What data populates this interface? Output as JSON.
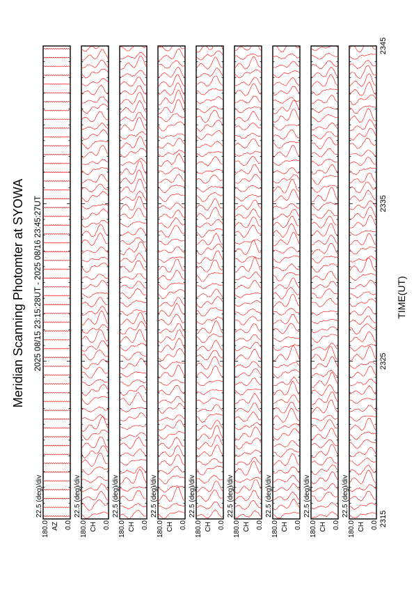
{
  "title": "Meridian Scanning Photomter at SYOWA",
  "time_range": "2025 08/15 23:15:28UT - 2025 08/16 23:45:27UT",
  "x_axis_label": "TIME(UT)",
  "colors": {
    "trace": "#ff0000",
    "frame": "#000000",
    "background": "#ffffff"
  },
  "chart_data": {
    "type": "line",
    "title": "Meridian Scanning Photomter at SYOWA",
    "xlabel": "TIME(UT)",
    "x_ticks": [
      "2315",
      "2325",
      "2335",
      "2345"
    ],
    "xlim": [
      2315,
      2345
    ],
    "panels": [
      {
        "scale_label": "22.5 (deg)/div",
        "y_top_label": "180.0",
        "y_bottom_label": "0.0",
        "channel_label": "AZ"
      },
      {
        "scale_label": "22.5 (deg)/div",
        "y_top_label": "180.0",
        "y_bottom_label": "0.0",
        "channel_label": "CH"
      },
      {
        "scale_label": "22.5 (deg)/div",
        "y_top_label": "180.0",
        "y_bottom_label": "0.0",
        "channel_label": "CH"
      },
      {
        "scale_label": "22.5 (deg)/div",
        "y_top_label": "180.0",
        "y_bottom_label": "0.0",
        "channel_label": "CH"
      },
      {
        "scale_label": "22.5 (deg)/div",
        "y_top_label": "180.0",
        "y_bottom_label": "0.0",
        "channel_label": "CH"
      },
      {
        "scale_label": "22.5 (deg)/div",
        "y_top_label": "180.0",
        "y_bottom_label": "0.0",
        "channel_label": "CH"
      },
      {
        "scale_label": "22.5 (deg)/div",
        "y_top_label": "180.0",
        "y_bottom_label": "0.0",
        "channel_label": "CH"
      },
      {
        "scale_label": "22.5 (deg)/div",
        "y_top_label": "180.0",
        "y_bottom_label": "0.0",
        "channel_label": "CH"
      },
      {
        "scale_label": "22.5 (deg)/div",
        "y_top_label": "180.0",
        "y_bottom_label": "0.0",
        "channel_label": "CH"
      }
    ],
    "ylim": [
      0,
      180
    ],
    "grid": false,
    "legend": "none"
  }
}
